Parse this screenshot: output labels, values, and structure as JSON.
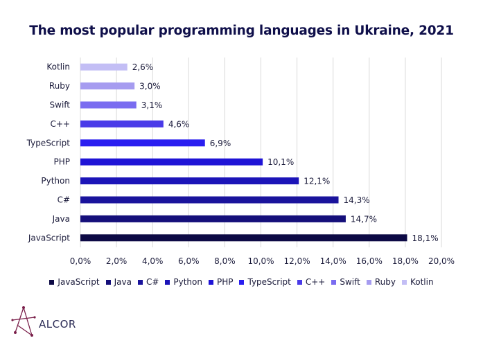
{
  "title": "The most popular programming languages in Ukraine, 2021",
  "logo_text": "ALCOR",
  "chart_data": {
    "type": "bar",
    "orientation": "horizontal",
    "title": "The most popular programming languages in Ukraine, 2021",
    "categories": [
      "Kotlin",
      "Ruby",
      "Swift",
      "C++",
      "TypeScript",
      "PHP",
      "Python",
      "C#",
      "Java",
      "JavaScript"
    ],
    "values": [
      2.6,
      3.0,
      3.1,
      4.6,
      6.9,
      10.1,
      12.1,
      14.3,
      14.7,
      18.1
    ],
    "value_labels": [
      "2,6%",
      "3,0%",
      "3,1%",
      "4,6%",
      "6,9%",
      "10,1%",
      "12,1%",
      "14,3%",
      "14,7%",
      "18,1%"
    ],
    "colors": [
      "#c3bef5",
      "#a69cf0",
      "#7a6cf0",
      "#4a3be8",
      "#2a1ef0",
      "#1f14d6",
      "#1c14b8",
      "#1a139c",
      "#150f7a",
      "#0d0a45"
    ],
    "xlim": [
      0,
      20
    ],
    "xticks": [
      "0,0%",
      "2,0%",
      "4,0%",
      "6,0%",
      "8,0%",
      "10,0%",
      "12,0%",
      "14,0%",
      "16,0%",
      "18,0%",
      "20,0%"
    ],
    "grid": true,
    "legend_position": "bottom",
    "legend": [
      "JavaScript",
      "Java",
      "C#",
      "Python",
      "PHP",
      "TypeScript",
      "C++",
      "Swift",
      "Ruby",
      "Kotlin"
    ],
    "legend_colors": [
      "#0d0a45",
      "#150f7a",
      "#1a139c",
      "#1c14b8",
      "#1f14d6",
      "#2a1ef0",
      "#4a3be8",
      "#7a6cf0",
      "#a69cf0",
      "#c3bef5"
    ]
  }
}
